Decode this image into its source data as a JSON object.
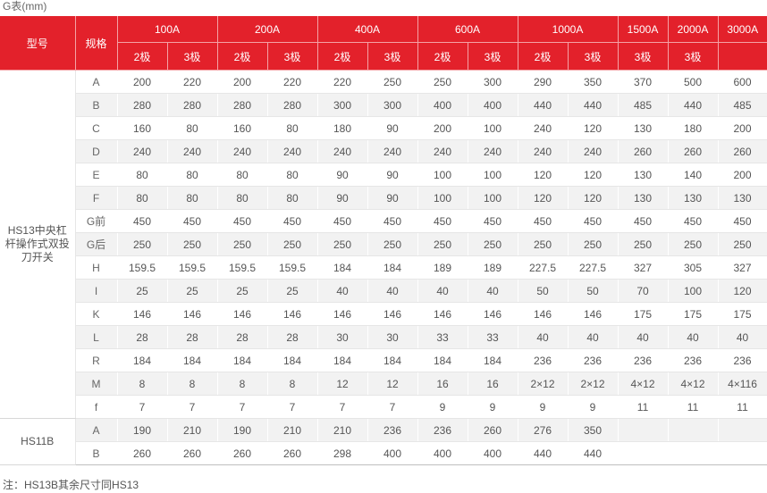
{
  "caption": "G表(mm)",
  "header": {
    "model_label": "型号",
    "spec_label": "规格",
    "ratings": [
      "100A",
      "200A",
      "400A",
      "600A",
      "1000A",
      "1500A",
      "2000A",
      "3000A"
    ],
    "poles": [
      "2极",
      "3极",
      "2极",
      "3极",
      "2极",
      "3极",
      "2极",
      "3极",
      "2极",
      "3极",
      "3极",
      "3极",
      ""
    ]
  },
  "groups": [
    {
      "model": "HS13中央杠杆操作式双投刀开关",
      "rows": [
        {
          "spec": "A",
          "values": [
            "200",
            "220",
            "200",
            "220",
            "220",
            "250",
            "250",
            "300",
            "290",
            "350",
            "370",
            "500",
            "600"
          ]
        },
        {
          "spec": "B",
          "values": [
            "280",
            "280",
            "280",
            "280",
            "300",
            "300",
            "400",
            "400",
            "440",
            "440",
            "485",
            "440",
            "485"
          ]
        },
        {
          "spec": "C",
          "values": [
            "160",
            "80",
            "160",
            "80",
            "180",
            "90",
            "200",
            "100",
            "240",
            "120",
            "130",
            "180",
            "200"
          ]
        },
        {
          "spec": "D",
          "values": [
            "240",
            "240",
            "240",
            "240",
            "240",
            "240",
            "240",
            "240",
            "240",
            "240",
            "260",
            "260",
            "260"
          ]
        },
        {
          "spec": "E",
          "values": [
            "80",
            "80",
            "80",
            "80",
            "90",
            "90",
            "100",
            "100",
            "120",
            "120",
            "130",
            "140",
            "200"
          ]
        },
        {
          "spec": "F",
          "values": [
            "80",
            "80",
            "80",
            "80",
            "90",
            "90",
            "100",
            "100",
            "120",
            "120",
            "130",
            "130",
            "130"
          ]
        },
        {
          "spec": "G前",
          "values": [
            "450",
            "450",
            "450",
            "450",
            "450",
            "450",
            "450",
            "450",
            "450",
            "450",
            "450",
            "450",
            "450"
          ]
        },
        {
          "spec": "G后",
          "values": [
            "250",
            "250",
            "250",
            "250",
            "250",
            "250",
            "250",
            "250",
            "250",
            "250",
            "250",
            "250",
            "250"
          ]
        },
        {
          "spec": "H",
          "values": [
            "159.5",
            "159.5",
            "159.5",
            "159.5",
            "184",
            "184",
            "189",
            "189",
            "227.5",
            "227.5",
            "327",
            "305",
            "327"
          ]
        },
        {
          "spec": "I",
          "values": [
            "25",
            "25",
            "25",
            "25",
            "40",
            "40",
            "40",
            "40",
            "50",
            "50",
            "70",
            "100",
            "120"
          ]
        },
        {
          "spec": "K",
          "values": [
            "146",
            "146",
            "146",
            "146",
            "146",
            "146",
            "146",
            "146",
            "146",
            "146",
            "175",
            "175",
            "175"
          ]
        },
        {
          "spec": "L",
          "values": [
            "28",
            "28",
            "28",
            "28",
            "30",
            "30",
            "33",
            "33",
            "40",
            "40",
            "40",
            "40",
            "40"
          ]
        },
        {
          "spec": "R",
          "values": [
            "184",
            "184",
            "184",
            "184",
            "184",
            "184",
            "184",
            "184",
            "236",
            "236",
            "236",
            "236",
            "236"
          ]
        },
        {
          "spec": "M",
          "values": [
            "8",
            "8",
            "8",
            "8",
            "12",
            "12",
            "16",
            "16",
            "2×12",
            "2×12",
            "4×12",
            "4×12",
            "4×116"
          ]
        },
        {
          "spec": "f",
          "values": [
            "7",
            "7",
            "7",
            "7",
            "7",
            "7",
            "9",
            "9",
            "9",
            "9",
            "11",
            "11",
            "11"
          ]
        }
      ]
    },
    {
      "model": "HS11B",
      "rows": [
        {
          "spec": "A",
          "values": [
            "190",
            "210",
            "190",
            "210",
            "210",
            "236",
            "236",
            "260",
            "276",
            "350",
            "",
            "",
            ""
          ]
        },
        {
          "spec": "B",
          "values": [
            "260",
            "260",
            "260",
            "260",
            "298",
            "400",
            "400",
            "400",
            "440",
            "440",
            "",
            "",
            ""
          ]
        }
      ]
    }
  ],
  "note": "注：HS13B其余尺寸同HS13"
}
